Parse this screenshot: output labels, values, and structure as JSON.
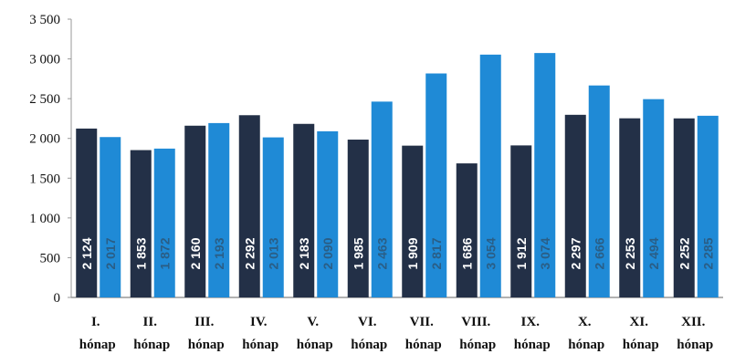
{
  "chart_data": {
    "type": "bar",
    "categories": [
      [
        "I.",
        "hónap"
      ],
      [
        "II.",
        "hónap"
      ],
      [
        "III.",
        "hónap"
      ],
      [
        "IV.",
        "hónap"
      ],
      [
        "V.",
        "hónap"
      ],
      [
        "VI.",
        "hónap"
      ],
      [
        "VII.",
        "hónap"
      ],
      [
        "VIII.",
        "hónap"
      ],
      [
        "IX.",
        "hónap"
      ],
      [
        "X.",
        "hónap"
      ],
      [
        "XI.",
        "hónap"
      ],
      [
        "XII.",
        "hónap"
      ]
    ],
    "series": [
      {
        "color": "#233047",
        "label_color": "#ffffff",
        "values": [
          2124,
          1853,
          2160,
          2292,
          2183,
          1985,
          1909,
          1686,
          1912,
          2297,
          2253,
          2252
        ],
        "labels": [
          "2 124",
          "1 853",
          "2 160",
          "2 292",
          "2 183",
          "1 985",
          "1 909",
          "1 686",
          "1 912",
          "2 297",
          "2 253",
          "2 252"
        ]
      },
      {
        "color": "#1f8ad6",
        "label_color": "#2a5e86",
        "values": [
          2017,
          1872,
          2193,
          2013,
          2090,
          2463,
          2817,
          3054,
          3074,
          2666,
          2494,
          2285
        ],
        "labels": [
          "2 017",
          "1 872",
          "2 193",
          "2 013",
          "2 090",
          "2 463",
          "2 817",
          "3 054",
          "3 074",
          "2 666",
          "2 494",
          "2 285"
        ]
      }
    ],
    "yticks": [
      0,
      500,
      1000,
      1500,
      2000,
      2500,
      3000,
      3500
    ],
    "ytick_labels": [
      "0",
      "500",
      "1 000",
      "1 500",
      "2 000",
      "2 500",
      "3 000",
      "3 500"
    ],
    "ylim": [
      0,
      3500
    ],
    "grid": false,
    "legend": "none",
    "title": "",
    "xlabel": "",
    "ylabel": ""
  }
}
